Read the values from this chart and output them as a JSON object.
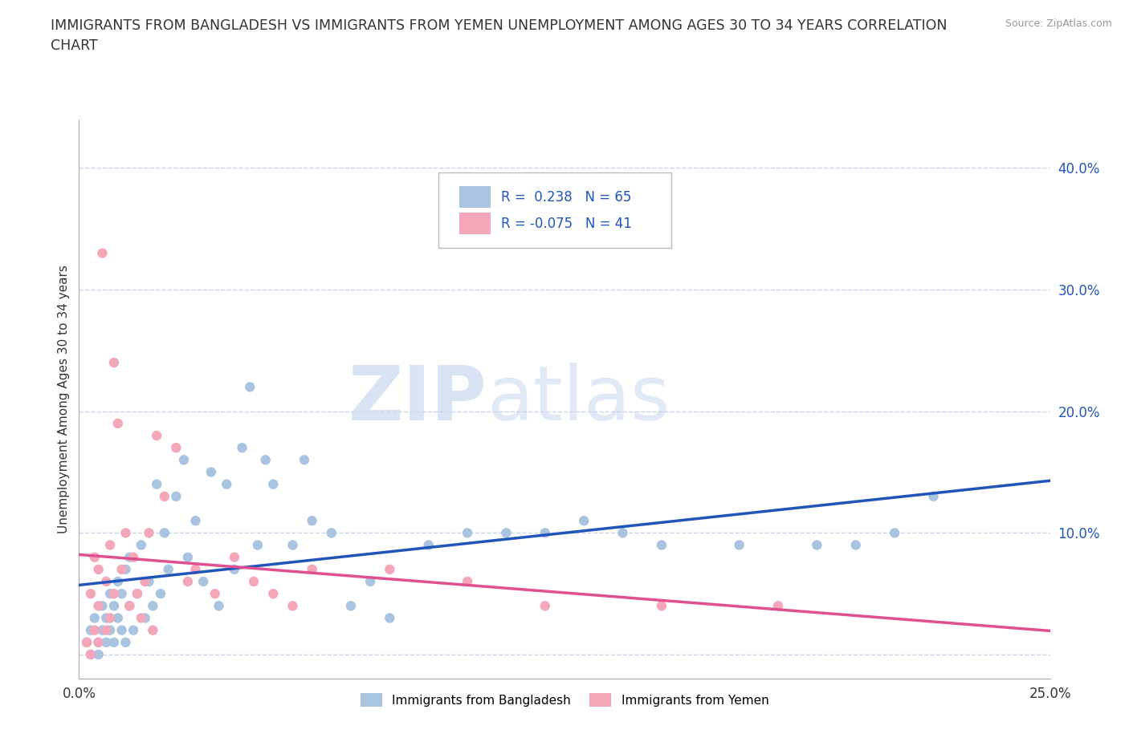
{
  "title": "IMMIGRANTS FROM BANGLADESH VS IMMIGRANTS FROM YEMEN UNEMPLOYMENT AMONG AGES 30 TO 34 YEARS CORRELATION\nCHART",
  "source": "Source: ZipAtlas.com",
  "ylabel": "Unemployment Among Ages 30 to 34 years",
  "xlim": [
    0.0,
    0.25
  ],
  "ylim": [
    -0.02,
    0.44
  ],
  "xticks": [
    0.0,
    0.05,
    0.1,
    0.15,
    0.2,
    0.25
  ],
  "xticklabels": [
    "0.0%",
    "",
    "",
    "",
    "",
    "25.0%"
  ],
  "yticks": [
    0.0,
    0.1,
    0.2,
    0.3,
    0.4
  ],
  "yticklabels": [
    "",
    "10.0%",
    "20.0%",
    "30.0%",
    "40.0%"
  ],
  "bangladesh_color": "#a8c4e0",
  "yemen_color": "#f4a7b9",
  "bangladesh_line_color": "#2255bb",
  "yemen_line_color": "#e05090",
  "R_bangladesh": 0.238,
  "N_bangladesh": 65,
  "R_yemen": -0.075,
  "N_yemen": 41,
  "watermark_zip": "ZIP",
  "watermark_atlas": "atlas",
  "background_color": "#ffffff",
  "grid_color": "#c8d4e8",
  "bangladesh_scatter": [
    [
      0.002,
      0.01
    ],
    [
      0.003,
      0.02
    ],
    [
      0.003,
      0.0
    ],
    [
      0.004,
      0.03
    ],
    [
      0.005,
      0.01
    ],
    [
      0.005,
      0.0
    ],
    [
      0.006,
      0.02
    ],
    [
      0.006,
      0.04
    ],
    [
      0.007,
      0.01
    ],
    [
      0.007,
      0.03
    ],
    [
      0.008,
      0.02
    ],
    [
      0.008,
      0.05
    ],
    [
      0.009,
      0.01
    ],
    [
      0.009,
      0.04
    ],
    [
      0.01,
      0.03
    ],
    [
      0.01,
      0.06
    ],
    [
      0.011,
      0.02
    ],
    [
      0.011,
      0.05
    ],
    [
      0.012,
      0.07
    ],
    [
      0.012,
      0.01
    ],
    [
      0.013,
      0.04
    ],
    [
      0.013,
      0.08
    ],
    [
      0.014,
      0.02
    ],
    [
      0.015,
      0.05
    ],
    [
      0.016,
      0.09
    ],
    [
      0.017,
      0.03
    ],
    [
      0.018,
      0.06
    ],
    [
      0.019,
      0.04
    ],
    [
      0.02,
      0.14
    ],
    [
      0.021,
      0.05
    ],
    [
      0.022,
      0.1
    ],
    [
      0.023,
      0.07
    ],
    [
      0.025,
      0.13
    ],
    [
      0.027,
      0.16
    ],
    [
      0.028,
      0.08
    ],
    [
      0.03,
      0.11
    ],
    [
      0.032,
      0.06
    ],
    [
      0.034,
      0.15
    ],
    [
      0.036,
      0.04
    ],
    [
      0.038,
      0.14
    ],
    [
      0.04,
      0.07
    ],
    [
      0.042,
      0.17
    ],
    [
      0.044,
      0.22
    ],
    [
      0.046,
      0.09
    ],
    [
      0.048,
      0.16
    ],
    [
      0.05,
      0.14
    ],
    [
      0.055,
      0.09
    ],
    [
      0.058,
      0.16
    ],
    [
      0.06,
      0.11
    ],
    [
      0.065,
      0.1
    ],
    [
      0.07,
      0.04
    ],
    [
      0.075,
      0.06
    ],
    [
      0.08,
      0.03
    ],
    [
      0.09,
      0.09
    ],
    [
      0.1,
      0.1
    ],
    [
      0.11,
      0.1
    ],
    [
      0.12,
      0.1
    ],
    [
      0.13,
      0.11
    ],
    [
      0.14,
      0.1
    ],
    [
      0.15,
      0.09
    ],
    [
      0.17,
      0.09
    ],
    [
      0.19,
      0.09
    ],
    [
      0.2,
      0.09
    ],
    [
      0.21,
      0.1
    ],
    [
      0.22,
      0.13
    ]
  ],
  "yemen_scatter": [
    [
      0.002,
      0.01
    ],
    [
      0.003,
      0.0
    ],
    [
      0.003,
      0.05
    ],
    [
      0.004,
      0.02
    ],
    [
      0.004,
      0.08
    ],
    [
      0.005,
      0.01
    ],
    [
      0.005,
      0.04
    ],
    [
      0.005,
      0.07
    ],
    [
      0.006,
      0.33
    ],
    [
      0.007,
      0.02
    ],
    [
      0.007,
      0.06
    ],
    [
      0.008,
      0.03
    ],
    [
      0.008,
      0.09
    ],
    [
      0.009,
      0.05
    ],
    [
      0.009,
      0.24
    ],
    [
      0.01,
      0.19
    ],
    [
      0.011,
      0.07
    ],
    [
      0.012,
      0.1
    ],
    [
      0.013,
      0.04
    ],
    [
      0.014,
      0.08
    ],
    [
      0.015,
      0.05
    ],
    [
      0.016,
      0.03
    ],
    [
      0.017,
      0.06
    ],
    [
      0.018,
      0.1
    ],
    [
      0.019,
      0.02
    ],
    [
      0.02,
      0.18
    ],
    [
      0.022,
      0.13
    ],
    [
      0.025,
      0.17
    ],
    [
      0.028,
      0.06
    ],
    [
      0.03,
      0.07
    ],
    [
      0.035,
      0.05
    ],
    [
      0.04,
      0.08
    ],
    [
      0.045,
      0.06
    ],
    [
      0.05,
      0.05
    ],
    [
      0.055,
      0.04
    ],
    [
      0.06,
      0.07
    ],
    [
      0.08,
      0.07
    ],
    [
      0.1,
      0.06
    ],
    [
      0.12,
      0.04
    ],
    [
      0.15,
      0.04
    ],
    [
      0.18,
      0.04
    ]
  ]
}
